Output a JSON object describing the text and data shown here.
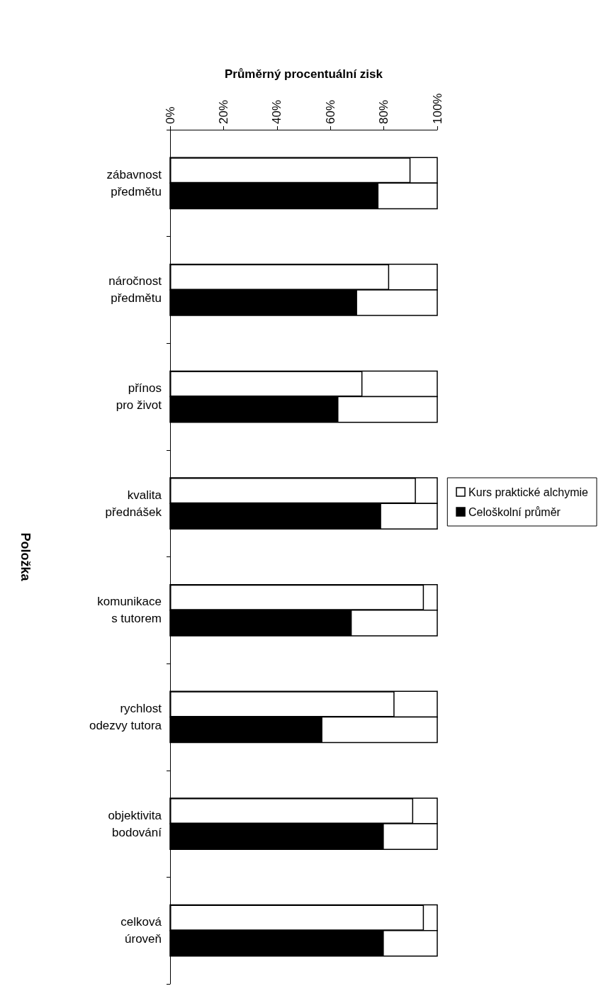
{
  "chart_data": {
    "type": "bar",
    "orientation": "horizontal",
    "xlabel": "Průměrný procentuální zisk",
    "ylabel": "Položka",
    "categories": [
      "zábavnost\npředmětu",
      "náročnost\npředmětu",
      "přínos\npro život",
      "kvalita\npřednášek",
      "komunikace\ns tutorem",
      "rychlost\nodezvy tutora",
      "objektivita\nbodování",
      "celková\núroveň"
    ],
    "series": [
      {
        "name": "Kurs praktické alchymie",
        "color": "#ffffff",
        "values": [
          90,
          82,
          72,
          92,
          95,
          84,
          91,
          95
        ]
      },
      {
        "name": "Celoškolní průměr",
        "color": "#000000",
        "values": [
          78,
          70,
          63,
          79,
          68,
          57,
          80,
          80
        ]
      }
    ],
    "xlim": [
      0,
      100
    ],
    "xticks": [
      {
        "value": 0,
        "label": "0%"
      },
      {
        "value": 20,
        "label": "20%"
      },
      {
        "value": 40,
        "label": "40%"
      },
      {
        "value": 60,
        "label": "60%"
      },
      {
        "value": 80,
        "label": "80%"
      },
      {
        "value": 100,
        "label": "100%"
      }
    ],
    "grid": false,
    "legend": "right"
  }
}
